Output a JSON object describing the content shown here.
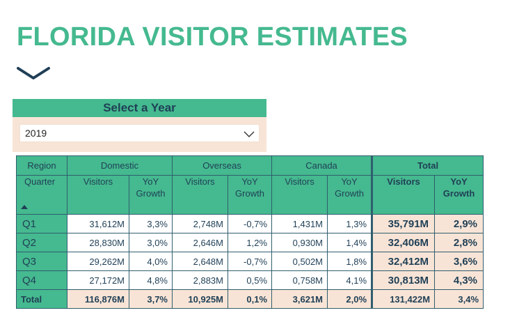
{
  "page": {
    "title": "FLORIDA VISITOR ESTIMATES"
  },
  "year_filter": {
    "label": "Select a Year",
    "selected": "2019",
    "chevron_icon": "chevron-down-icon"
  },
  "table": {
    "headers": {
      "region": "Region",
      "quarter": "Quarter",
      "domestic": "Domestic",
      "overseas": "Overseas",
      "canada": "Canada",
      "total": "Total",
      "visitors": "Visitors",
      "yoy_line1": "YoY",
      "yoy_line2": "Growth"
    },
    "rows": [
      {
        "quarter": "Q1",
        "dom_v": "31,612M",
        "dom_g": "3,3%",
        "ovs_v": "2,748M",
        "ovs_g": "-0,7%",
        "can_v": "1,431M",
        "can_g": "1,3%",
        "tot_v": "35,791M",
        "tot_g": "2,9%"
      },
      {
        "quarter": "Q2",
        "dom_v": "28,830M",
        "dom_g": "3,0%",
        "ovs_v": "2,646M",
        "ovs_g": "1,2%",
        "can_v": "0,930M",
        "can_g": "1,4%",
        "tot_v": "32,406M",
        "tot_g": "2,8%"
      },
      {
        "quarter": "Q3",
        "dom_v": "29,262M",
        "dom_g": "4,0%",
        "ovs_v": "2,648M",
        "ovs_g": "-0,7%",
        "can_v": "0,502M",
        "can_g": "1,8%",
        "tot_v": "32,412M",
        "tot_g": "3,6%"
      },
      {
        "quarter": "Q4",
        "dom_v": "27,172M",
        "dom_g": "4,8%",
        "ovs_v": "2,883M",
        "ovs_g": "0,5%",
        "can_v": "0,758M",
        "can_g": "4,1%",
        "tot_v": "30,813M",
        "tot_g": "4,3%"
      }
    ],
    "totals": {
      "label": "Total",
      "dom_v": "116,876M",
      "dom_g": "3,7%",
      "ovs_v": "10,925M",
      "ovs_g": "0,1%",
      "can_v": "3,621M",
      "can_g": "2,0%",
      "tot_v": "131,422M",
      "tot_g": "3,4%"
    }
  },
  "colors": {
    "accent": "#45b98f",
    "navy": "#1f3f56",
    "peach": "#f8e4d6",
    "border": "#2f5e6e"
  }
}
